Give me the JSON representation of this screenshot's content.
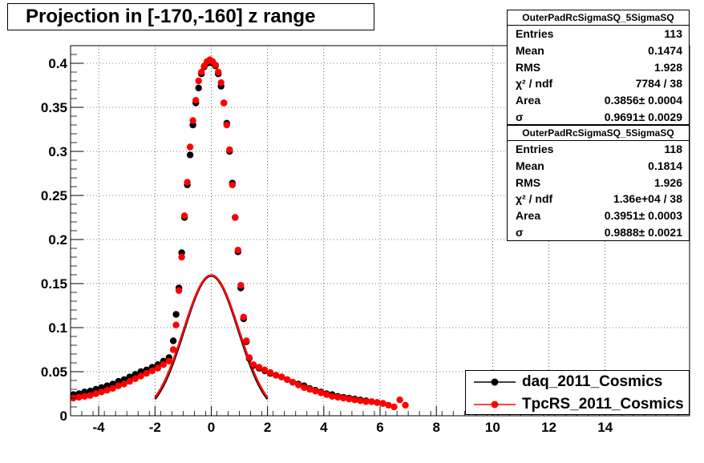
{
  "title": "Projection in [-170,-160] z range",
  "stats": [
    {
      "name": "OuterPadRcSigmaSQ_5SigmaSQ",
      "rows": [
        {
          "label": "Entries",
          "value": "113"
        },
        {
          "label": "Mean",
          "value": "0.1474"
        },
        {
          "label": "RMS",
          "value": "1.928"
        },
        {
          "label": "χ² / ndf",
          "value": "7784 / 38"
        },
        {
          "label": "Area",
          "value": "0.3856± 0.0004"
        },
        {
          "label": "σ",
          "value": "0.9691± 0.0029"
        }
      ]
    },
    {
      "name": "OuterPadRcSigmaSQ_5SigmaSQ",
      "rows": [
        {
          "label": "Entries",
          "value": "118"
        },
        {
          "label": "Mean",
          "value": "0.1814"
        },
        {
          "label": "RMS",
          "value": "1.926"
        },
        {
          "label": "χ² / ndf",
          "value": "1.36e+04 / 38"
        },
        {
          "label": "Area",
          "value": "0.3951± 0.0003"
        },
        {
          "label": "σ",
          "value": "0.9888± 0.0021"
        }
      ]
    }
  ],
  "legend": [
    {
      "name": "daq_2011_Cosmics",
      "color": "#000000"
    },
    {
      "name": "TpcRS_2011_Cosmics",
      "color": "#ff0000"
    }
  ],
  "chart_data": {
    "type": "scatter",
    "title": "Projection in [-170,-160] z range",
    "xlim": [
      -5,
      17
    ],
    "ylim": [
      0,
      0.42
    ],
    "xticks": [
      -4,
      -2,
      0,
      2,
      4,
      6,
      8,
      10,
      12,
      14
    ],
    "yticks": [
      0,
      0.05,
      0.1,
      0.15,
      0.2,
      0.25,
      0.3,
      0.35,
      0.4
    ],
    "grid": true,
    "legend_position": "bottom-right",
    "series": [
      {
        "name": "daq_2011_Cosmics",
        "color": "#000000",
        "x": [
          -4.9,
          -4.7,
          -4.5,
          -4.3,
          -4.1,
          -3.9,
          -3.7,
          -3.5,
          -3.3,
          -3.1,
          -2.9,
          -2.7,
          -2.5,
          -2.3,
          -2.1,
          -1.9,
          -1.7,
          -1.5,
          -1.35,
          -1.25,
          -1.15,
          -1.05,
          -0.95,
          -0.85,
          -0.75,
          -0.65,
          -0.55,
          -0.45,
          -0.35,
          -0.25,
          -0.15,
          -0.05,
          0.05,
          0.15,
          0.25,
          0.35,
          0.45,
          0.55,
          0.65,
          0.75,
          0.85,
          0.95,
          1.05,
          1.15,
          1.25,
          1.35,
          1.5,
          1.7,
          1.9,
          2.1,
          2.3,
          2.5,
          2.7,
          2.9,
          3.1,
          3.3,
          3.5,
          3.7,
          3.9,
          4.1,
          4.3,
          4.5,
          4.7,
          4.9,
          5.1,
          5.3,
          5.5,
          5.7,
          5.9,
          6.1
        ],
        "y": [
          0.024,
          0.025,
          0.027,
          0.028,
          0.03,
          0.032,
          0.034,
          0.036,
          0.039,
          0.041,
          0.044,
          0.047,
          0.05,
          0.052,
          0.055,
          0.058,
          0.062,
          0.066,
          0.085,
          0.115,
          0.145,
          0.185,
          0.225,
          0.262,
          0.296,
          0.33,
          0.355,
          0.372,
          0.388,
          0.396,
          0.4,
          0.401,
          0.4,
          0.397,
          0.388,
          0.374,
          0.355,
          0.332,
          0.3,
          0.264,
          0.225,
          0.186,
          0.145,
          0.11,
          0.084,
          0.065,
          0.057,
          0.054,
          0.051,
          0.048,
          0.046,
          0.044,
          0.041,
          0.038,
          0.036,
          0.034,
          0.031,
          0.029,
          0.027,
          0.025,
          0.024,
          0.022,
          0.021,
          0.02,
          0.019,
          0.018,
          0.017,
          0.016,
          0.015,
          0.014
        ]
      },
      {
        "name": "TpcRS_2011_Cosmics",
        "color": "#ff0000",
        "x": [
          -4.9,
          -4.7,
          -4.5,
          -4.3,
          -4.1,
          -3.9,
          -3.7,
          -3.5,
          -3.3,
          -3.1,
          -2.9,
          -2.7,
          -2.5,
          -2.3,
          -2.1,
          -1.9,
          -1.7,
          -1.5,
          -1.35,
          -1.25,
          -1.15,
          -1.05,
          -0.95,
          -0.85,
          -0.75,
          -0.65,
          -0.55,
          -0.45,
          -0.35,
          -0.25,
          -0.15,
          -0.05,
          0.05,
          0.15,
          0.25,
          0.35,
          0.45,
          0.55,
          0.65,
          0.75,
          0.85,
          0.95,
          1.05,
          1.15,
          1.25,
          1.35,
          1.5,
          1.7,
          1.9,
          2.1,
          2.3,
          2.5,
          2.7,
          2.9,
          3.1,
          3.3,
          3.5,
          3.7,
          3.9,
          4.1,
          4.3,
          4.5,
          4.7,
          4.9,
          5.1,
          5.3,
          5.5,
          5.7,
          5.9,
          6.1,
          6.3,
          6.5,
          6.7,
          6.9
        ],
        "y": [
          0.02,
          0.021,
          0.022,
          0.023,
          0.025,
          0.027,
          0.029,
          0.031,
          0.034,
          0.036,
          0.039,
          0.042,
          0.045,
          0.048,
          0.051,
          0.054,
          0.058,
          0.062,
          0.075,
          0.103,
          0.142,
          0.18,
          0.227,
          0.265,
          0.305,
          0.335,
          0.358,
          0.38,
          0.39,
          0.397,
          0.402,
          0.404,
          0.402,
          0.398,
          0.39,
          0.378,
          0.355,
          0.33,
          0.302,
          0.262,
          0.225,
          0.188,
          0.148,
          0.112,
          0.085,
          0.066,
          0.058,
          0.055,
          0.052,
          0.049,
          0.046,
          0.044,
          0.041,
          0.038,
          0.035,
          0.032,
          0.03,
          0.028,
          0.026,
          0.024,
          0.022,
          0.021,
          0.02,
          0.019,
          0.018,
          0.017,
          0.016,
          0.016,
          0.015,
          0.014,
          0.012,
          0.01,
          0.018,
          0.012
        ]
      }
    ],
    "fits": [
      {
        "series": "daq_2011_Cosmics",
        "area": 0.3856,
        "sigma": 0.9691,
        "mean": 0.0,
        "range": [
          -2.0,
          2.0
        ],
        "color": "#000000"
      },
      {
        "series": "TpcRS_2011_Cosmics",
        "area": 0.3951,
        "sigma": 0.9888,
        "mean": 0.0,
        "range": [
          -2.0,
          2.0
        ],
        "color": "#ff0000"
      }
    ]
  }
}
